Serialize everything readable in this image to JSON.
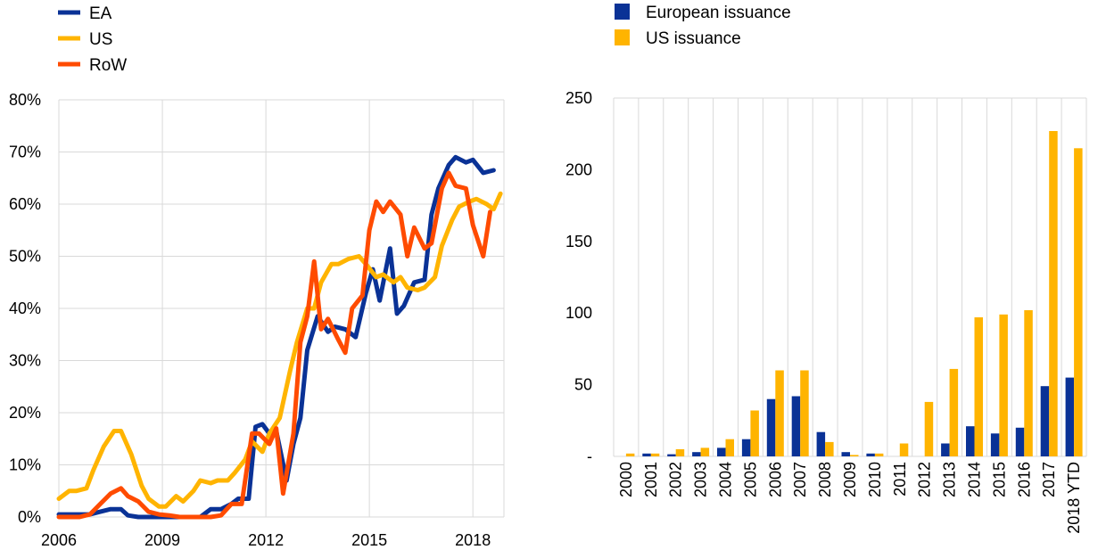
{
  "chart_data": [
    {
      "type": "line",
      "title": "",
      "xlabel": "",
      "ylabel": "",
      "ylim": [
        0,
        80
      ],
      "y_ticks": [
        "0%",
        "10%",
        "20%",
        "30%",
        "40%",
        "50%",
        "60%",
        "70%",
        "80%"
      ],
      "x_ticks": [
        "2006",
        "2009",
        "2012",
        "2015",
        "2018"
      ],
      "x_tick_years": [
        2006,
        2009,
        2012,
        2015,
        2018
      ],
      "x_range": [
        2006.0,
        2018.9
      ],
      "grid": true,
      "legend_position": "top-left",
      "series": [
        {
          "name": "EA",
          "color": "#0a3296",
          "points": [
            [
              2006.0,
              0.5
            ],
            [
              2006.3,
              0.5
            ],
            [
              2006.6,
              0.5
            ],
            [
              2006.9,
              0.5
            ],
            [
              2007.2,
              1.0
            ],
            [
              2007.5,
              1.5
            ],
            [
              2007.8,
              1.5
            ],
            [
              2008.0,
              0.3
            ],
            [
              2008.3,
              0.0
            ],
            [
              2008.6,
              0.0
            ],
            [
              2008.9,
              0.0
            ],
            [
              2009.2,
              0.0
            ],
            [
              2009.5,
              0.0
            ],
            [
              2009.8,
              0.0
            ],
            [
              2010.1,
              0.0
            ],
            [
              2010.4,
              1.5
            ],
            [
              2010.7,
              1.5
            ],
            [
              2011.0,
              2.5
            ],
            [
              2011.2,
              3.5
            ],
            [
              2011.5,
              3.5
            ],
            [
              2011.7,
              17.3
            ],
            [
              2011.9,
              17.8
            ],
            [
              2012.1,
              16.0
            ],
            [
              2012.3,
              16.5
            ],
            [
              2012.6,
              7.0
            ],
            [
              2012.8,
              14.0
            ],
            [
              2013.0,
              19.0
            ],
            [
              2013.2,
              32.0
            ],
            [
              2013.5,
              38.5
            ],
            [
              2013.8,
              35.5
            ],
            [
              2014.0,
              36.5
            ],
            [
              2014.3,
              36.0
            ],
            [
              2014.6,
              34.5
            ],
            [
              2014.9,
              43.0
            ],
            [
              2015.1,
              47.5
            ],
            [
              2015.3,
              41.5
            ],
            [
              2015.6,
              51.5
            ],
            [
              2015.8,
              39.0
            ],
            [
              2016.0,
              40.5
            ],
            [
              2016.3,
              45.0
            ],
            [
              2016.6,
              45.5
            ],
            [
              2016.8,
              58.0
            ],
            [
              2017.0,
              63.0
            ],
            [
              2017.3,
              67.5
            ],
            [
              2017.5,
              69.0
            ],
            [
              2017.8,
              68.0
            ],
            [
              2018.0,
              68.5
            ],
            [
              2018.3,
              66.0
            ],
            [
              2018.6,
              66.5
            ]
          ]
        },
        {
          "name": "US",
          "color": "#ffb400",
          "points": [
            [
              2006.0,
              3.5
            ],
            [
              2006.3,
              5.0
            ],
            [
              2006.5,
              5.0
            ],
            [
              2006.8,
              5.5
            ],
            [
              2007.0,
              9.0
            ],
            [
              2007.3,
              13.5
            ],
            [
              2007.6,
              16.5
            ],
            [
              2007.8,
              16.5
            ],
            [
              2008.1,
              12.0
            ],
            [
              2008.4,
              6.0
            ],
            [
              2008.6,
              3.5
            ],
            [
              2008.9,
              2.0
            ],
            [
              2009.1,
              2.0
            ],
            [
              2009.4,
              4.0
            ],
            [
              2009.6,
              3.0
            ],
            [
              2009.9,
              5.0
            ],
            [
              2010.1,
              7.0
            ],
            [
              2010.4,
              6.5
            ],
            [
              2010.6,
              7.0
            ],
            [
              2010.9,
              7.0
            ],
            [
              2011.1,
              8.5
            ],
            [
              2011.4,
              11.0
            ],
            [
              2011.6,
              14.5
            ],
            [
              2011.9,
              12.5
            ],
            [
              2012.1,
              16.0
            ],
            [
              2012.4,
              19.0
            ],
            [
              2012.7,
              28.0
            ],
            [
              2012.9,
              33.5
            ],
            [
              2013.2,
              40.0
            ],
            [
              2013.4,
              40.0
            ],
            [
              2013.6,
              45.0
            ],
            [
              2013.9,
              48.5
            ],
            [
              2014.1,
              48.5
            ],
            [
              2014.4,
              49.5
            ],
            [
              2014.7,
              50.0
            ],
            [
              2014.9,
              48.5
            ],
            [
              2015.2,
              46.0
            ],
            [
              2015.4,
              46.5
            ],
            [
              2015.7,
              45.0
            ],
            [
              2015.9,
              46.0
            ],
            [
              2016.1,
              44.0
            ],
            [
              2016.4,
              43.5
            ],
            [
              2016.6,
              44.0
            ],
            [
              2016.9,
              46.0
            ],
            [
              2017.1,
              52.0
            ],
            [
              2017.4,
              57.0
            ],
            [
              2017.6,
              59.5
            ],
            [
              2017.9,
              60.5
            ],
            [
              2018.1,
              61.0
            ],
            [
              2018.4,
              60.0
            ],
            [
              2018.6,
              59.0
            ],
            [
              2018.8,
              62.0
            ]
          ]
        },
        {
          "name": "RoW",
          "color": "#ff4b00",
          "points": [
            [
              2006.0,
              0.0
            ],
            [
              2006.3,
              0.0
            ],
            [
              2006.6,
              0.0
            ],
            [
              2006.9,
              0.5
            ],
            [
              2007.2,
              2.5
            ],
            [
              2007.5,
              4.5
            ],
            [
              2007.8,
              5.5
            ],
            [
              2008.0,
              4.0
            ],
            [
              2008.3,
              3.0
            ],
            [
              2008.6,
              1.0
            ],
            [
              2008.9,
              0.5
            ],
            [
              2009.2,
              0.3
            ],
            [
              2009.5,
              0.0
            ],
            [
              2009.8,
              0.0
            ],
            [
              2010.1,
              0.0
            ],
            [
              2010.4,
              0.0
            ],
            [
              2010.7,
              0.3
            ],
            [
              2011.0,
              2.5
            ],
            [
              2011.3,
              2.5
            ],
            [
              2011.6,
              16.0
            ],
            [
              2011.8,
              16.0
            ],
            [
              2012.1,
              14.0
            ],
            [
              2012.3,
              17.0
            ],
            [
              2012.5,
              4.5
            ],
            [
              2012.8,
              16.0
            ],
            [
              2013.0,
              33.5
            ],
            [
              2013.2,
              38.5
            ],
            [
              2013.4,
              49.0
            ],
            [
              2013.6,
              36.0
            ],
            [
              2013.8,
              38.0
            ],
            [
              2014.1,
              34.0
            ],
            [
              2014.3,
              31.5
            ],
            [
              2014.5,
              40.0
            ],
            [
              2014.8,
              42.5
            ],
            [
              2015.0,
              55.0
            ],
            [
              2015.2,
              60.5
            ],
            [
              2015.4,
              58.5
            ],
            [
              2015.6,
              60.5
            ],
            [
              2015.9,
              58.0
            ],
            [
              2016.1,
              50.0
            ],
            [
              2016.3,
              55.5
            ],
            [
              2016.6,
              51.5
            ],
            [
              2016.8,
              52.5
            ],
            [
              2017.1,
              63.0
            ],
            [
              2017.3,
              66.0
            ],
            [
              2017.5,
              63.5
            ],
            [
              2017.8,
              63.0
            ],
            [
              2018.0,
              56.0
            ],
            [
              2018.3,
              50.0
            ],
            [
              2018.5,
              58.5
            ]
          ]
        }
      ]
    },
    {
      "type": "bar",
      "title": "",
      "xlabel": "",
      "ylabel": "",
      "ylim": [
        0,
        250
      ],
      "y_ticks": [
        "-",
        "50",
        "100",
        "150",
        "200",
        "250"
      ],
      "grid": true,
      "legend_position": "top-left",
      "categories": [
        "2000",
        "2001",
        "2002",
        "2003",
        "2004",
        "2005",
        "2006",
        "2007",
        "2008",
        "2009",
        "2010",
        "2011",
        "2012",
        "2013",
        "2014",
        "2015",
        "2016",
        "2017",
        "2018 YTD"
      ],
      "series": [
        {
          "name": "European issuance",
          "color": "#0a3296",
          "values": [
            0,
            2,
            1.5,
            3,
            6,
            12,
            40,
            42,
            17,
            3,
            2,
            0,
            0,
            9,
            21,
            16,
            20,
            49,
            55
          ]
        },
        {
          "name": "US issuance",
          "color": "#ffb400",
          "values": [
            2,
            2,
            5,
            6,
            12,
            32,
            60,
            60,
            10,
            1,
            2,
            9,
            38,
            61,
            97,
            99,
            102,
            227,
            215
          ]
        }
      ]
    }
  ]
}
